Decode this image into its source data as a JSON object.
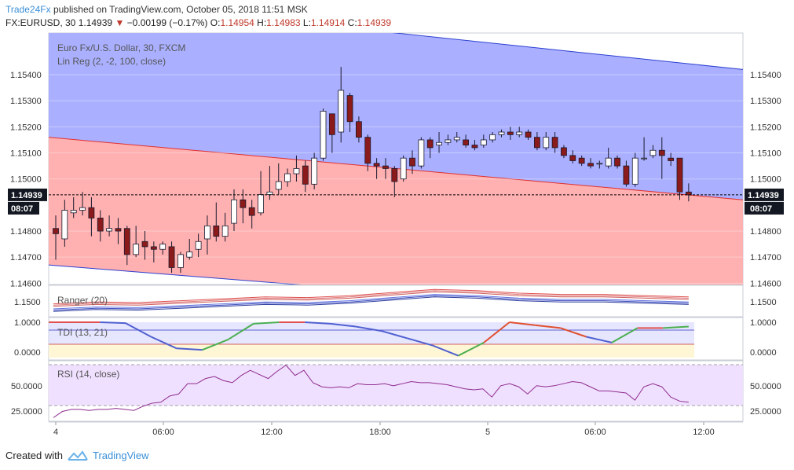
{
  "header": {
    "publisher": "Trade24Fx",
    "published_text": "published on TradingView.com, October 05, 2018 11:51 MSK",
    "symbol": "FX:EURUSD, 30",
    "last": "1.14939",
    "change": "−0.00199 (−0.17%)",
    "o_label": "O:",
    "o": "1.14954",
    "h_label": "H:",
    "h": "1.14983",
    "l_label": "L:",
    "l": "1.14914",
    "c_label": "C:",
    "c": "1.14939"
  },
  "footer": {
    "created_with": "Created with",
    "brand": "TradingView"
  },
  "colors": {
    "up": "#ffffff",
    "down": "#8b1a1a",
    "blue_zone": "#aab0ff",
    "red_zone": "#ffb0b0",
    "price_tag": "#131722"
  },
  "chart_data": [
    {
      "type": "candlestick",
      "title": "Euro Fx/U.S. Dollar, 30, FXCM",
      "indicator": "Lin Reg (2, -2, 100, close)",
      "x_ticks": [
        "4",
        "06:00",
        "12:00",
        "18:00",
        "5",
        "06:00",
        "12:00"
      ],
      "y_ticks": [
        "1.15400",
        "1.15300",
        "1.15200",
        "1.15100",
        "1.15000",
        "1.14800",
        "1.14700",
        "1.14600"
      ],
      "ylim": [
        1.14595,
        1.1556
      ],
      "last_price_label": "1.14939",
      "countdown_label": "08:07",
      "last_price": 1.14939,
      "regression_mid": [
        1.1516,
        1.1492
      ],
      "regression_upper": [
        1.157,
        1.1542
      ],
      "regression_lower": [
        1.1467,
        1.1446
      ],
      "candles": [
        [
          1.1481,
          1.1479,
          1.1486,
          1.1469
        ],
        [
          1.1477,
          1.1488,
          1.1492,
          1.1474
        ],
        [
          1.1487,
          1.1488,
          1.1493,
          1.1485
        ],
        [
          1.1488,
          1.1489,
          1.1495,
          1.1486
        ],
        [
          1.1489,
          1.1485,
          1.1493,
          1.1478
        ],
        [
          1.1485,
          1.148,
          1.1488,
          1.1476
        ],
        [
          1.148,
          1.1481,
          1.1486,
          1.1478
        ],
        [
          1.1481,
          1.148,
          1.1485,
          1.1475
        ],
        [
          1.1481,
          1.1471,
          1.1482,
          1.1467
        ],
        [
          1.1471,
          1.1475,
          1.1482,
          1.147
        ],
        [
          1.1476,
          1.1474,
          1.148,
          1.1469
        ],
        [
          1.1474,
          1.1473,
          1.1476,
          1.1468
        ],
        [
          1.1473,
          1.1475,
          1.1476,
          1.1471
        ],
        [
          1.1474,
          1.1466,
          1.1476,
          1.1464
        ],
        [
          1.1466,
          1.1471,
          1.1472,
          1.1464
        ],
        [
          1.147,
          1.1472,
          1.1477,
          1.1469
        ],
        [
          1.1473,
          1.1476,
          1.1479,
          1.147
        ],
        [
          1.1477,
          1.1482,
          1.1486,
          1.1471
        ],
        [
          1.1482,
          1.1478,
          1.1491,
          1.1476
        ],
        [
          1.1478,
          1.1482,
          1.1487,
          1.1476
        ],
        [
          1.1483,
          1.1492,
          1.1496,
          1.148
        ],
        [
          1.1492,
          1.1489,
          1.1496,
          1.1483
        ],
        [
          1.1489,
          1.1486,
          1.1492,
          1.1481
        ],
        [
          1.1487,
          1.1494,
          1.1503,
          1.1486
        ],
        [
          1.1494,
          1.1495,
          1.1505,
          1.1492
        ],
        [
          1.1496,
          1.1499,
          1.1506,
          1.1494
        ],
        [
          1.1499,
          1.1502,
          1.1504,
          1.1497
        ],
        [
          1.1502,
          1.1504,
          1.1509,
          1.1499
        ],
        [
          1.1505,
          1.1498,
          1.1507,
          1.1495
        ],
        [
          1.1498,
          1.1508,
          1.151,
          1.1496
        ],
        [
          1.1508,
          1.1526,
          1.1527,
          1.1507
        ],
        [
          1.1525,
          1.1517,
          1.1525,
          1.151
        ],
        [
          1.1518,
          1.1534,
          1.1543,
          1.1514
        ],
        [
          1.1532,
          1.1522,
          1.1533,
          1.1518
        ],
        [
          1.1522,
          1.1516,
          1.1524,
          1.1514
        ],
        [
          1.1516,
          1.1506,
          1.1517,
          1.1503
        ],
        [
          1.1506,
          1.1505,
          1.1508,
          1.15
        ],
        [
          1.1505,
          1.1504,
          1.1508,
          1.15
        ],
        [
          1.1504,
          1.1499,
          1.1505,
          1.1493
        ],
        [
          1.15,
          1.1508,
          1.1509,
          1.1499
        ],
        [
          1.1508,
          1.1505,
          1.1511,
          1.1502
        ],
        [
          1.1505,
          1.1515,
          1.1516,
          1.1504
        ],
        [
          1.1515,
          1.1512,
          1.1516,
          1.1508
        ],
        [
          1.1513,
          1.1514,
          1.1518,
          1.151
        ],
        [
          1.1514,
          1.1515,
          1.1517,
          1.1513
        ],
        [
          1.1515,
          1.1516,
          1.1518,
          1.1514
        ],
        [
          1.1515,
          1.1513,
          1.1517,
          1.1512
        ],
        [
          1.1513,
          1.1512,
          1.1515,
          1.1511
        ],
        [
          1.1513,
          1.1515,
          1.1517,
          1.1512
        ],
        [
          1.1515,
          1.1517,
          1.1518,
          1.1514
        ],
        [
          1.1517,
          1.1518,
          1.1519,
          1.1516
        ],
        [
          1.1518,
          1.1517,
          1.152,
          1.1515
        ],
        [
          1.1517,
          1.1518,
          1.152,
          1.1516
        ],
        [
          1.1518,
          1.1516,
          1.1519,
          1.1515
        ],
        [
          1.1516,
          1.1512,
          1.1518,
          1.1511
        ],
        [
          1.1512,
          1.1516,
          1.1518,
          1.1511
        ],
        [
          1.1516,
          1.1512,
          1.1518,
          1.151
        ],
        [
          1.1512,
          1.1509,
          1.1513,
          1.1508
        ],
        [
          1.1509,
          1.1507,
          1.1511,
          1.1506
        ],
        [
          1.1508,
          1.1506,
          1.1509,
          1.1505
        ],
        [
          1.1506,
          1.1505,
          1.1508,
          1.1504
        ],
        [
          1.1506,
          1.1506,
          1.1507,
          1.1504
        ],
        [
          1.1505,
          1.1508,
          1.1512,
          1.1504
        ],
        [
          1.1508,
          1.1505,
          1.1509,
          1.1504
        ],
        [
          1.1505,
          1.1498,
          1.1507,
          1.1497
        ],
        [
          1.1498,
          1.1508,
          1.151,
          1.1497
        ],
        [
          1.1508,
          1.1508,
          1.1516,
          1.1507
        ],
        [
          1.1509,
          1.1511,
          1.1513,
          1.1508
        ],
        [
          1.1511,
          1.1509,
          1.1516,
          1.15
        ],
        [
          1.1508,
          1.1507,
          1.151,
          1.1505
        ],
        [
          1.1508,
          1.1495,
          1.1508,
          1.1492
        ],
        [
          1.1495,
          1.14939,
          1.14983,
          1.14914
        ]
      ]
    },
    {
      "type": "line",
      "title": "Ranger (20)",
      "y_ticks": [
        "1.1500"
      ],
      "series": [
        {
          "values": [
            1.1497,
            1.15,
            1.1499,
            1.1502,
            1.1505,
            1.1508,
            1.1507,
            1.151,
            1.1515,
            1.152,
            1.1518,
            1.1514,
            1.1512,
            1.1512,
            1.151,
            1.1508
          ]
        }
      ]
    },
    {
      "type": "line",
      "title": "TDI (13, 21)",
      "y_ticks": [
        "1.0000",
        "0.0000"
      ],
      "series": [
        {
          "values": [
            1.0,
            1.0,
            1.0,
            0.97,
            0.5,
            0.1,
            0.05,
            0.4,
            0.95,
            1.0,
            1.0,
            0.95,
            0.85,
            0.7,
            0.45,
            0.2,
            -0.15,
            0.3,
            1.0,
            0.9,
            0.8,
            0.5,
            0.3,
            0.8,
            0.8,
            0.85
          ]
        }
      ]
    },
    {
      "type": "line",
      "title": "RSI (14, close)",
      "y_ticks": [
        "50.0000",
        "25.0000"
      ],
      "ylim": [
        20,
        75
      ],
      "series": [
        {
          "values": [
            22,
            28,
            30,
            30,
            29,
            30,
            30,
            31,
            30,
            29,
            33,
            36,
            37,
            43,
            45,
            55,
            55,
            60,
            62,
            58,
            56,
            63,
            68,
            64,
            60,
            67,
            73,
            63,
            68,
            56,
            52,
            51,
            52,
            51,
            55,
            54,
            54,
            55,
            53,
            55,
            57,
            56,
            56,
            55,
            54,
            52,
            50,
            49,
            50,
            42,
            53,
            55,
            52,
            45,
            53,
            52,
            53,
            55,
            57,
            56,
            52,
            48,
            48,
            47,
            46,
            39,
            52,
            55,
            52,
            42,
            38,
            37
          ]
        }
      ]
    }
  ]
}
